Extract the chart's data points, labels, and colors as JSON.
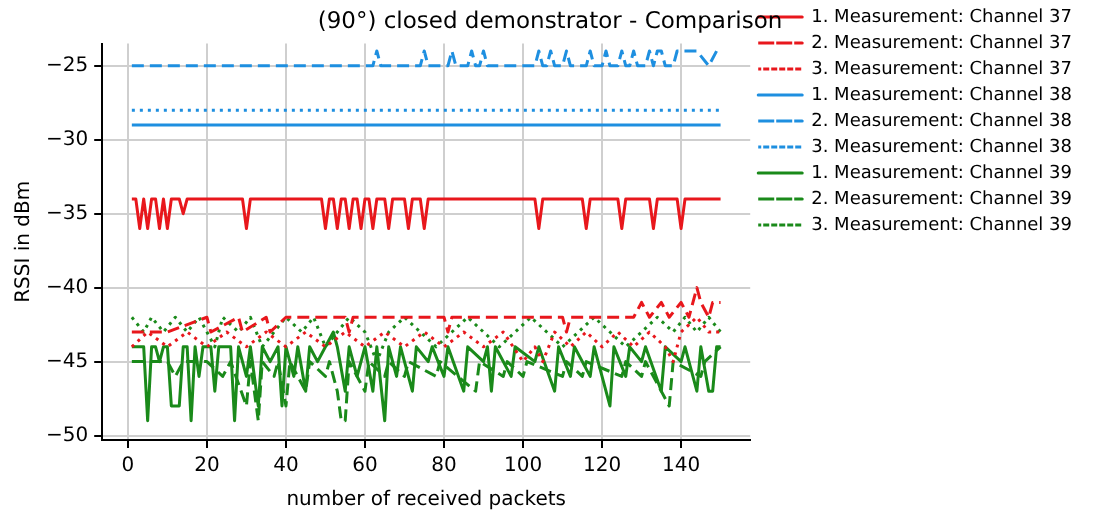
{
  "chart_data": {
    "type": "line",
    "title": "(90°) closed demonstrator - Comparison",
    "xlabel": "number of received packets",
    "ylabel": "RSSI in dBm",
    "xlim": [
      -6.5,
      157.5
    ],
    "xticks": [
      0,
      20,
      40,
      60,
      80,
      100,
      120,
      140
    ],
    "ylim": [
      -50.3,
      -23.5
    ],
    "yticks": [
      -50,
      -45,
      -40,
      -35,
      -30,
      -25
    ],
    "grid": true,
    "legend": "right",
    "series": [
      {
        "name": "1. Measurement: Channel 37",
        "color": "#e8171c",
        "line_style": "solid",
        "x": [
          1,
          2,
          3,
          4,
          5,
          6,
          7,
          8,
          9,
          10,
          11,
          13,
          14,
          15,
          29,
          30,
          31,
          49,
          50,
          51,
          52,
          53,
          54,
          55,
          56,
          57,
          58,
          59,
          60,
          61,
          62,
          63,
          65,
          66,
          67,
          70,
          71,
          72,
          74,
          75,
          76,
          103,
          104,
          105,
          115,
          116,
          117,
          124,
          125,
          126,
          132,
          133,
          134,
          139,
          140,
          141,
          150
        ],
        "values": [
          -34,
          -34,
          -36,
          -34,
          -36,
          -34,
          -34,
          -36,
          -34,
          -36,
          -34,
          -34,
          -35,
          -34,
          -34,
          -36,
          -34,
          -34,
          -36,
          -34,
          -34,
          -36,
          -34,
          -34,
          -36,
          -34,
          -34,
          -36,
          -34,
          -34,
          -36,
          -34,
          -34,
          -36,
          -34,
          -34,
          -36,
          -34,
          -34,
          -36,
          -34,
          -34,
          -36,
          -34,
          -34,
          -36,
          -34,
          -34,
          -36,
          -34,
          -34,
          -36,
          -34,
          -34,
          -36,
          -34,
          -34
        ]
      },
      {
        "name": "2. Measurement: Channel 37",
        "color": "#e8171c",
        "line_style": "dashed",
        "x": [
          1,
          10,
          20,
          21,
          28,
          29,
          35,
          36,
          40,
          55,
          56,
          57,
          80,
          81,
          82,
          100,
          110,
          111,
          112,
          128,
          130,
          132,
          135,
          137,
          140,
          142,
          144,
          145,
          147,
          148,
          150
        ],
        "values": [
          -43,
          -43,
          -42,
          -43,
          -42,
          -43,
          -42,
          -43,
          -42,
          -42,
          -43,
          -42,
          -42,
          -43,
          -42,
          -42,
          -42,
          -43,
          -42,
          -42,
          -41,
          -42,
          -41,
          -42,
          -41,
          -42,
          -40,
          -41,
          -42,
          -41,
          -41
        ]
      },
      {
        "name": "3. Measurement: Channel 37",
        "color": "#e8171c",
        "line_style": "dotted",
        "x": [
          1,
          5,
          10,
          15,
          20,
          25,
          30,
          35,
          40,
          45,
          50,
          55,
          60,
          65,
          70,
          75,
          80,
          85,
          90,
          95,
          100,
          103,
          105,
          108,
          112,
          116,
          120,
          124,
          128,
          132,
          136,
          138,
          140,
          144,
          147,
          150
        ],
        "values": [
          -44,
          -43,
          -44,
          -43,
          -44,
          -43,
          -44,
          -43,
          -44,
          -43,
          -44,
          -43,
          -44,
          -43,
          -44,
          -43,
          -44,
          -43,
          -44,
          -43,
          -45,
          -44,
          -45,
          -43,
          -44,
          -43,
          -44,
          -43,
          -44,
          -43,
          -44,
          -45,
          -43,
          -42,
          -43,
          -43
        ]
      },
      {
        "name": "1. Measurement: Channel 38",
        "color": "#1e8fe0",
        "line_style": "solid",
        "x": [
          1,
          150
        ],
        "values": [
          -29,
          -29
        ]
      },
      {
        "name": "2. Measurement: Channel 38",
        "color": "#1e8fe0",
        "line_style": "dashed",
        "x": [
          1,
          62,
          63,
          64,
          74,
          75,
          76,
          81,
          82,
          83,
          86,
          87,
          88,
          89,
          90,
          91,
          103,
          104,
          105,
          106,
          107,
          108,
          110,
          111,
          112,
          116,
          117,
          118,
          120,
          121,
          122,
          124,
          125,
          126,
          127,
          128,
          129,
          131,
          132,
          133,
          134,
          135,
          136,
          138,
          139,
          140,
          144,
          147,
          149,
          150
        ],
        "values": [
          -25,
          -25,
          -24,
          -25,
          -25,
          -24,
          -25,
          -25,
          -24,
          -25,
          -25,
          -24,
          -25,
          -25,
          -24,
          -25,
          -25,
          -24,
          -25,
          -25,
          -24,
          -25,
          -25,
          -24,
          -25,
          -25,
          -24,
          -25,
          -25,
          -24,
          -25,
          -25,
          -24,
          -25,
          -25,
          -24,
          -25,
          -25,
          -24,
          -25,
          -24,
          -24,
          -25,
          -25,
          -24,
          -24,
          -24,
          -25,
          -24,
          -24
        ]
      },
      {
        "name": "3. Measurement: Channel 38",
        "color": "#1e8fe0",
        "line_style": "dotted",
        "x": [
          1,
          150
        ],
        "values": [
          -28,
          -28
        ]
      },
      {
        "name": "1. Measurement: Channel 39",
        "color": "#1a8a1a",
        "line_style": "solid",
        "x": [
          1,
          4,
          5,
          6,
          7,
          8,
          9,
          10,
          11,
          13,
          14,
          15,
          16,
          17,
          18,
          19,
          21,
          22,
          23,
          26,
          27,
          28,
          30,
          31,
          33,
          34,
          36,
          38,
          39,
          40,
          42,
          43,
          45,
          46,
          48,
          50,
          52,
          53,
          55,
          56,
          58,
          60,
          62,
          63,
          65,
          66,
          68,
          69,
          72,
          73,
          76,
          77,
          80,
          81,
          85,
          86,
          90,
          91,
          92,
          93,
          97,
          98,
          103,
          104,
          108,
          109,
          112,
          113,
          117,
          118,
          122,
          123,
          126,
          127,
          130,
          131,
          135,
          136,
          140,
          141,
          144,
          145,
          147,
          148,
          149,
          150
        ],
        "values": [
          -44,
          -44,
          -49,
          -44,
          -44,
          -45,
          -44,
          -44,
          -48,
          -48,
          -44,
          -44,
          -49,
          -44,
          -46,
          -44,
          -44,
          -47,
          -44,
          -44,
          -49,
          -44,
          -46,
          -44,
          -48,
          -44,
          -45,
          -44,
          -48,
          -44,
          -46,
          -44,
          -47,
          -44,
          -45,
          -44,
          -43,
          -44,
          -47,
          -44,
          -46,
          -44,
          -47,
          -44,
          -49,
          -44,
          -46,
          -44,
          -47,
          -44,
          -45,
          -44,
          -46,
          -44,
          -47,
          -44,
          -45,
          -44,
          -47,
          -44,
          -46,
          -44,
          -45,
          -44,
          -47,
          -44,
          -46,
          -44,
          -46,
          -44,
          -48,
          -44,
          -46,
          -44,
          -45,
          -44,
          -47,
          -44,
          -45,
          -44,
          -47,
          -44,
          -47,
          -47,
          -44,
          -44
        ]
      },
      {
        "name": "2. Measurement: Channel 39",
        "color": "#1a8a1a",
        "line_style": "dashed",
        "x": [
          1,
          10,
          12,
          14,
          20,
          24,
          26,
          30,
          31,
          33,
          34,
          37,
          38,
          40,
          41,
          45,
          46,
          50,
          51,
          53,
          54,
          55,
          56,
          60,
          61,
          65,
          66,
          70,
          71,
          78,
          79,
          88,
          89,
          95,
          96,
          100,
          101,
          110,
          111,
          115,
          116,
          125,
          126,
          130,
          131,
          137,
          138,
          145,
          146,
          150
        ],
        "values": [
          -45,
          -45,
          -46,
          -45,
          -45,
          -46,
          -45,
          -48,
          -45,
          -49,
          -45,
          -46,
          -45,
          -48,
          -45,
          -47,
          -45,
          -46,
          -45,
          -47,
          -49,
          -49,
          -45,
          -47,
          -45,
          -46,
          -45,
          -46,
          -45,
          -46,
          -45,
          -47,
          -45,
          -46,
          -45,
          -46,
          -45,
          -46,
          -45,
          -46,
          -45,
          -46,
          -45,
          -46,
          -45,
          -48,
          -45,
          -46,
          -45,
          -44
        ]
      },
      {
        "name": "3. Measurement: Channel 39",
        "color": "#1a8a1a",
        "line_style": "dotted",
        "x": [
          1,
          4,
          6,
          9,
          12,
          15,
          18,
          22,
          24,
          28,
          31,
          34,
          37,
          40,
          44,
          47,
          50,
          53,
          56,
          60,
          63,
          66,
          70,
          74,
          78,
          82,
          86,
          90,
          94,
          98,
          102,
          106,
          110,
          114,
          118,
          122,
          126,
          130,
          134,
          138,
          141,
          144,
          147,
          150
        ],
        "values": [
          -42,
          -43,
          -42,
          -43,
          -42,
          -43,
          -42,
          -44,
          -42,
          -43,
          -42,
          -44,
          -43,
          -42,
          -43,
          -42,
          -44,
          -43,
          -42,
          -43,
          -45,
          -43,
          -42,
          -43,
          -44,
          -43,
          -42,
          -43,
          -44,
          -43,
          -42,
          -43,
          -44,
          -43,
          -42,
          -43,
          -44,
          -43,
          -42,
          -43,
          -42,
          -43,
          -42,
          -43
        ]
      }
    ]
  }
}
